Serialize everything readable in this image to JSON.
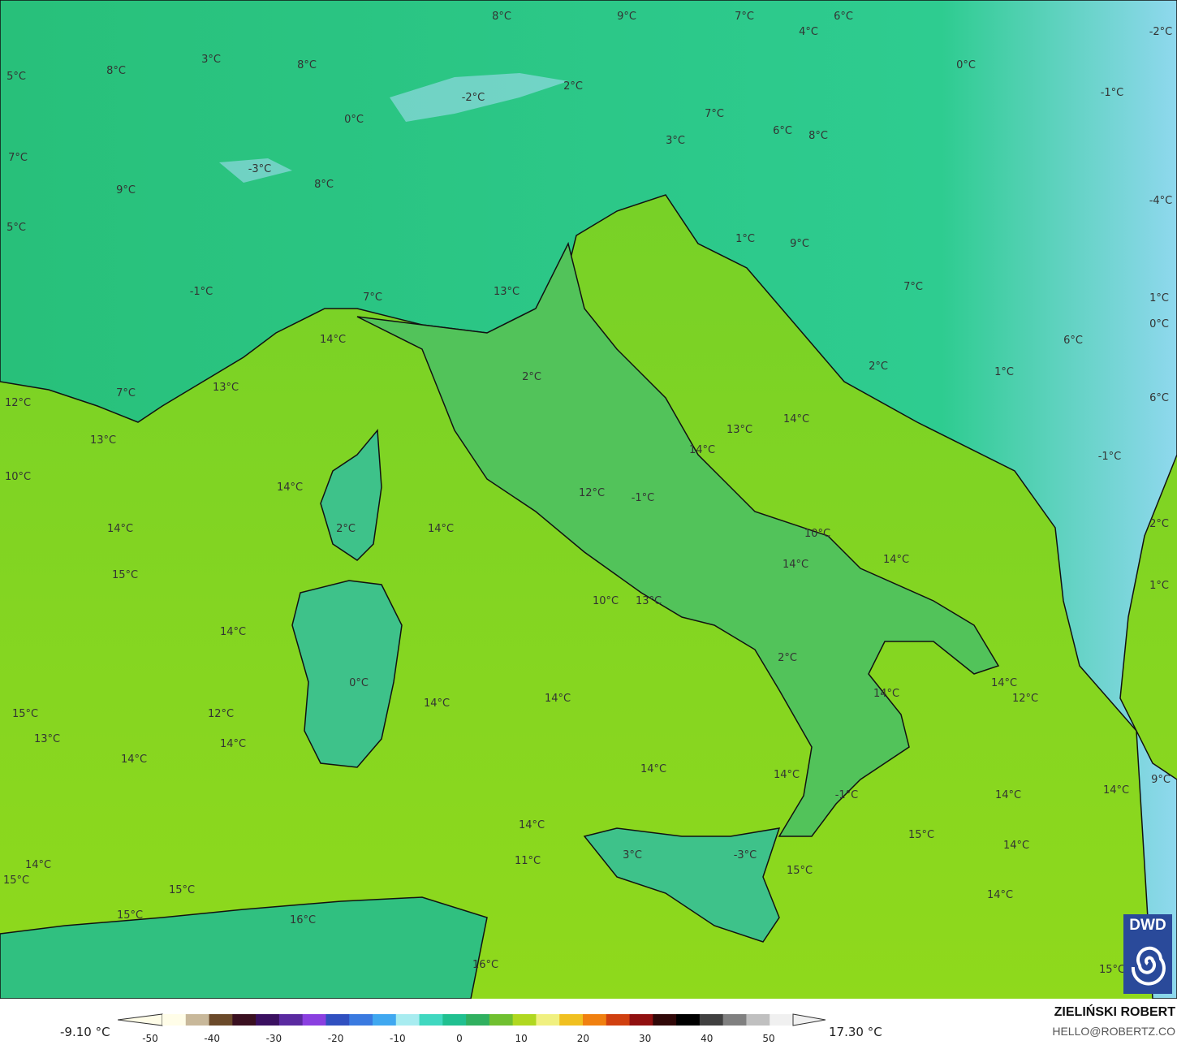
{
  "map": {
    "variable": "temperature",
    "unit": "°C",
    "colors": {
      "sea": "#7ed321",
      "land_low": "#5cc63a",
      "land_mid": "#2fc48a",
      "land_high": "#3ad0c0",
      "cold": "#9fd8f4",
      "border": "#111111",
      "admin": "#9a9a9a"
    },
    "labels": [
      "8°C",
      "9°C",
      "7°C",
      "6°C",
      "-2°C",
      "4°C",
      "3°C",
      "8°C",
      "8°C",
      "0°C",
      "5°C",
      "2°C",
      "-2°C",
      "-1°C",
      "0°C",
      "7°C",
      "6°C",
      "8°C",
      "3°C",
      "7°C",
      "-3°C",
      "8°C",
      "9°C",
      "-4°C",
      "5°C",
      "1°C",
      "9°C",
      "-1°C",
      "7°C",
      "13°C",
      "7°C",
      "1°C",
      "0°C",
      "14°C",
      "6°C",
      "2°C",
      "1°C",
      "2°C",
      "7°C",
      "13°C",
      "12°C",
      "6°C",
      "14°C",
      "13°C",
      "13°C",
      "14°C",
      "-1°C",
      "10°C",
      "14°C",
      "12°C",
      "-1°C",
      "2°C",
      "14°C",
      "2°C",
      "14°C",
      "10°C",
      "14°C",
      "14°C",
      "15°C",
      "1°C",
      "10°C",
      "13°C",
      "14°C",
      "2°C",
      "0°C",
      "14°C",
      "14°C",
      "12°C",
      "14°C",
      "14°C",
      "15°C",
      "12°C",
      "13°C",
      "14°C",
      "14°C",
      "14°C",
      "14°C",
      "9°C",
      "14°C",
      "-1°C",
      "14°C",
      "14°C",
      "15°C",
      "14°C",
      "3°C",
      "-3°C",
      "11°C",
      "14°C",
      "15°C",
      "15°C",
      "15°C",
      "14°C",
      "15°C",
      "16°C",
      "16°C",
      "15°C"
    ]
  },
  "logo": {
    "text": "DWD",
    "icon": "spiral-icon"
  },
  "legend": {
    "min_label": "-9.10 °C",
    "max_label": "17.30 °C",
    "ticks": [
      "-50",
      "-40",
      "-30",
      "-20",
      "-10",
      "0",
      "10",
      "20",
      "30",
      "40",
      "50"
    ],
    "colors": [
      "#fffde8",
      "#c8b89a",
      "#6b4a2a",
      "#3a1020",
      "#3a1060",
      "#5a2aa0",
      "#8a40e0",
      "#3050c0",
      "#3a7ae0",
      "#40a8f0",
      "#a8ecf0",
      "#40d8c0",
      "#20c090",
      "#30b060",
      "#70c030",
      "#b0d820",
      "#f0f080",
      "#f0c020",
      "#f08010",
      "#d04010",
      "#901010",
      "#300808",
      "#000000",
      "#404040",
      "#808080",
      "#c0c0c0",
      "#f0f0f0"
    ]
  },
  "credits": {
    "author": "ZIELIŃSKI ROBERT",
    "email": "HELLO@ROBERTZ.CO"
  }
}
